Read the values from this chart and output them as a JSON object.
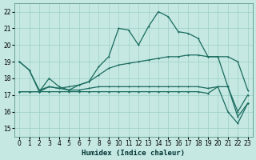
{
  "xlabel": "Humidex (Indice chaleur)",
  "xlim": [
    -0.5,
    23.5
  ],
  "ylim": [
    14.5,
    22.5
  ],
  "xticks": [
    0,
    1,
    2,
    3,
    4,
    5,
    6,
    7,
    8,
    9,
    10,
    11,
    12,
    13,
    14,
    15,
    16,
    17,
    18,
    19,
    20,
    21,
    22,
    23
  ],
  "yticks": [
    15,
    16,
    17,
    18,
    19,
    20,
    21,
    22
  ],
  "bg_color": "#c5e8e2",
  "grid_color": "#9dcfc8",
  "line_color": "#1a6b5e",
  "line1": {
    "x": [
      0,
      1,
      2,
      3,
      4,
      5,
      6,
      7,
      8,
      9,
      10,
      11,
      12,
      13,
      14,
      15,
      16,
      17,
      18,
      19,
      20,
      21,
      22,
      23
    ],
    "y": [
      19.0,
      18.5,
      17.2,
      18.0,
      17.5,
      17.3,
      17.6,
      17.8,
      18.7,
      19.3,
      21.0,
      20.9,
      20.0,
      21.1,
      22.0,
      21.7,
      20.8,
      20.7,
      20.4,
      19.3,
      19.3,
      17.5,
      15.7,
      16.5
    ]
  },
  "line2": {
    "x": [
      0,
      1,
      2,
      3,
      4,
      5,
      6,
      7,
      8,
      9,
      10,
      11,
      12,
      13,
      14,
      15,
      16,
      17,
      18,
      19,
      20,
      21,
      22,
      23
    ],
    "y": [
      19.0,
      18.5,
      17.3,
      17.5,
      17.4,
      17.5,
      17.6,
      17.8,
      18.2,
      18.6,
      18.8,
      18.9,
      19.0,
      19.1,
      19.2,
      19.3,
      19.3,
      19.4,
      19.4,
      19.3,
      19.3,
      19.3,
      19.0,
      17.3
    ]
  },
  "line3": {
    "x": [
      0,
      1,
      2,
      3,
      4,
      5,
      6,
      7,
      8,
      9,
      10,
      11,
      12,
      13,
      14,
      15,
      16,
      17,
      18,
      19,
      20,
      21,
      22,
      23
    ],
    "y": [
      17.2,
      17.2,
      17.2,
      17.5,
      17.4,
      17.3,
      17.3,
      17.4,
      17.5,
      17.5,
      17.5,
      17.5,
      17.5,
      17.5,
      17.5,
      17.5,
      17.5,
      17.5,
      17.5,
      17.4,
      17.5,
      17.5,
      16.0,
      17.0
    ]
  },
  "line4": {
    "x": [
      0,
      1,
      2,
      3,
      4,
      5,
      6,
      7,
      8,
      9,
      10,
      11,
      12,
      13,
      14,
      15,
      16,
      17,
      18,
      19,
      20,
      21,
      22,
      23
    ],
    "y": [
      17.2,
      17.2,
      17.2,
      17.2,
      17.2,
      17.2,
      17.2,
      17.2,
      17.2,
      17.2,
      17.2,
      17.2,
      17.2,
      17.2,
      17.2,
      17.2,
      17.2,
      17.2,
      17.2,
      17.1,
      17.5,
      16.0,
      15.3,
      16.5
    ]
  }
}
